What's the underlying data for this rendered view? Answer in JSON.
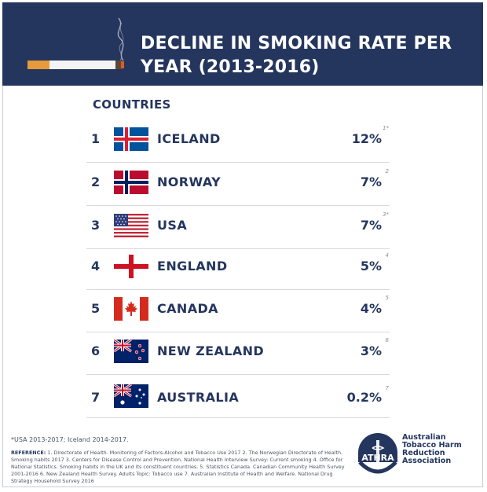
{
  "header": {
    "title_line1": "DECLINE IN SMOKING RATE PER",
    "title_line2": "YEAR (2013-2016)"
  },
  "column_header": "COUNTRIES",
  "rows": [
    {
      "rank": "1",
      "country": "ICELAND",
      "value": "12%",
      "ref": "1*",
      "flag": "iceland-flag-icon"
    },
    {
      "rank": "2",
      "country": "NORWAY",
      "value": "7%",
      "ref": "2",
      "flag": "norway-flag-icon"
    },
    {
      "rank": "3",
      "country": "USA",
      "value": "7%",
      "ref": "3*",
      "flag": "usa-flag-icon"
    },
    {
      "rank": "4",
      "country": "ENGLAND",
      "value": "5%",
      "ref": "4",
      "flag": "england-flag-icon"
    },
    {
      "rank": "5",
      "country": "CANADA",
      "value": "4%",
      "ref": "5",
      "flag": "canada-flag-icon"
    },
    {
      "rank": "6",
      "country": "NEW ZEALAND",
      "value": "3%",
      "ref": "6",
      "flag": "new-zealand-flag-icon"
    },
    {
      "rank": "7",
      "country": "AUSTRALIA",
      "value": "0.2%",
      "ref": "7",
      "flag": "australia-flag-icon"
    }
  ],
  "chart_data": {
    "type": "table",
    "title": "DECLINE IN SMOKING RATE PER YEAR (2013-2016)",
    "columns": [
      "COUNTRIES"
    ],
    "categories": [
      "ICELAND",
      "NORWAY",
      "USA",
      "ENGLAND",
      "CANADA",
      "NEW ZEALAND",
      "AUSTRALIA"
    ],
    "values": [
      12,
      7,
      7,
      5,
      4,
      3,
      0.2
    ],
    "value_labels": [
      "12%",
      "7%",
      "7%",
      "5%",
      "4%",
      "3%",
      "0.2%"
    ]
  },
  "footer": {
    "footnote": "*USA 2013-2017; Iceland 2014-2017.",
    "reference_label": "REFERENCE:",
    "reference_text": "1. Directorate of Health. Monitoring of Factors-Alcohol and Tobacco Use 2017 2. The Norwegian Directorate of Health. Smoking habits 2017 3. Centers for Disease Control and Prevention. National Health Interview Survey: Current smoking 4. Office for National Statistics. Smoking habits in the UK and its constituent countries. 5. Statistics Canada. Canadian Community Health Survey 2001-2016 6. New Zealand Health Survey. Adults Topic: Tobacco use 7. Australian Institute of Health and Welfare. National Drug Strategy Household Survey 2016"
  },
  "logo": {
    "acronym": "ATHRA",
    "line1": "Australian",
    "line2": "Tobacco Harm Reduction",
    "line3": "Association"
  },
  "colors": {
    "navy": "#25365e",
    "flag_red": "#d52b1e",
    "flag_blue": "#1f3f8f",
    "iceland_blue": "#02529c",
    "iceland_red": "#dc1e35",
    "norway_red": "#ba0c2f",
    "norway_blue": "#00205b"
  }
}
